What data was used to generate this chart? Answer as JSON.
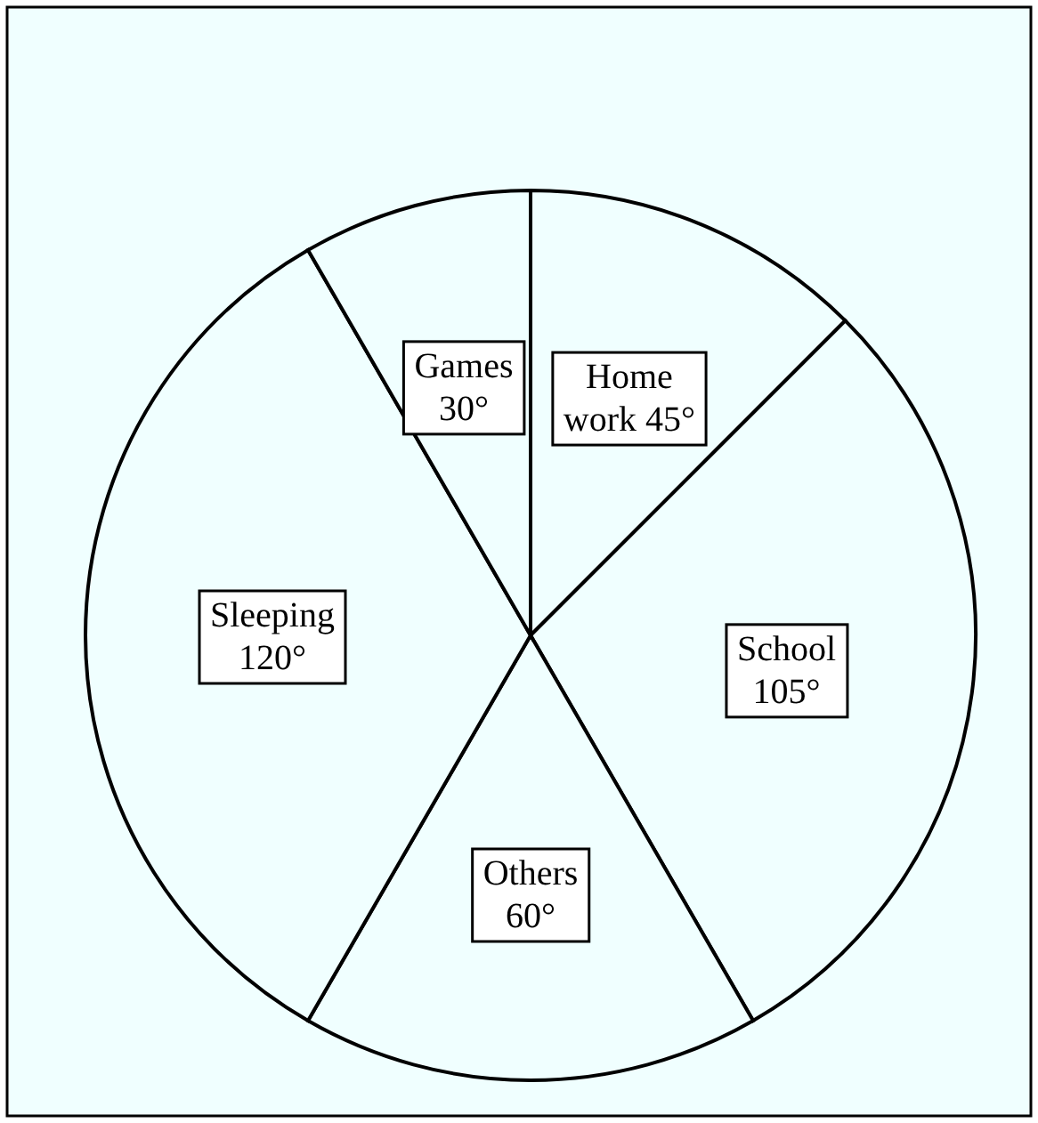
{
  "chart_data": {
    "type": "pie",
    "categories": [
      "Home work",
      "School",
      "Others",
      "Sleeping",
      "Games"
    ],
    "values": [
      45,
      105,
      60,
      120,
      30
    ],
    "value_labels": [
      "45°",
      "105°",
      "60°",
      "120°",
      "30°"
    ],
    "colors": [
      "#f0ffff",
      "#f0ffff",
      "#f0ffff",
      "#f0ffff",
      "#f0ffff"
    ]
  }
}
